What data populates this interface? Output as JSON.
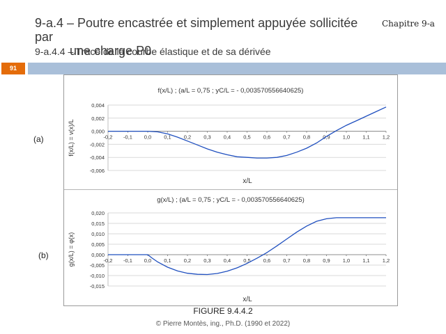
{
  "header": {
    "title_line1": "9-a.4 – Poutre encastrée et simplement appuyée sollicitée par",
    "title_line2": "une charge P0",
    "chapter": "Chapitre 9-a",
    "subtitle": "9-a.4.4 – Tracé de la courbe élastique et de sa dérivée",
    "page_number": "91"
  },
  "figure": {
    "caption": "FIGURE 9.4.4.2",
    "copyright": "© Pierre Montès, ing., Ph.D. (1990 et 2022)"
  },
  "chart_data": [
    {
      "panel_label": "(a)",
      "type": "line",
      "title": "f(x/L)  ;  (a/L = 0,75 ; yC/L = - 0,003570556640625)",
      "xlabel": "x/L",
      "ylabel": "f(x/L) = v(x)/L",
      "xlim": [
        -0.2,
        1.2
      ],
      "ylim": [
        -0.006,
        0.004
      ],
      "x_ticks": [
        "-0,2",
        "-0,1",
        "0,0",
        "0,1",
        "0,2",
        "0,3",
        "0,4",
        "0,5",
        "0,6",
        "0,7",
        "0,8",
        "0,9",
        "1,0",
        "1,1",
        "1,2"
      ],
      "y_ticks": [
        "0,004",
        "0,002",
        "0,000",
        "-0,002",
        "-0,004",
        "-0,006"
      ],
      "grid": true,
      "series": [
        {
          "color": "#1f4fbf",
          "x": [
            -0.2,
            -0.1,
            0.0,
            0.05,
            0.1,
            0.15,
            0.2,
            0.25,
            0.3,
            0.35,
            0.4,
            0.45,
            0.5,
            0.55,
            0.6,
            0.65,
            0.7,
            0.75,
            0.8,
            0.85,
            0.9,
            0.95,
            1.0,
            1.05,
            1.1,
            1.15,
            1.2
          ],
          "y": [
            0.0,
            0.0,
            0.0,
            -0.0001,
            -0.0004,
            -0.0009,
            -0.0015,
            -0.0021,
            -0.0027,
            -0.0032,
            -0.0036,
            -0.0039,
            -0.004,
            -0.0041,
            -0.0041,
            -0.004,
            -0.0037,
            -0.0032,
            -0.0026,
            -0.0018,
            -0.0008,
            0.0001,
            0.0009,
            0.0016,
            0.0023,
            0.003,
            0.0037
          ]
        }
      ]
    },
    {
      "panel_label": "(b)",
      "type": "line",
      "title": "g(x/L)  ;  (a/L = 0,75 ; yC/L = - 0,003570556640625)",
      "xlabel": "x/L",
      "ylabel": "g(x/L) = φ(x)",
      "xlim": [
        -0.2,
        1.2
      ],
      "ylim": [
        -0.015,
        0.02
      ],
      "x_ticks": [
        "-0,2",
        "-0,1",
        "0,0",
        "0,1",
        "0,2",
        "0,3",
        "0,4",
        "0,5",
        "0,6",
        "0,7",
        "0,8",
        "0,9",
        "1,0",
        "1,1",
        "1,2"
      ],
      "y_ticks": [
        "0,020",
        "0,015",
        "0,010",
        "0,005",
        "0,000",
        "-0,005",
        "-0,010",
        "-0,015"
      ],
      "grid": true,
      "series": [
        {
          "color": "#1f4fbf",
          "x": [
            -0.2,
            -0.1,
            0.0,
            0.02,
            0.05,
            0.1,
            0.15,
            0.2,
            0.25,
            0.3,
            0.35,
            0.4,
            0.45,
            0.5,
            0.55,
            0.6,
            0.65,
            0.7,
            0.75,
            0.8,
            0.85,
            0.9,
            0.95,
            1.0,
            1.05,
            1.1,
            1.15,
            1.2
          ],
          "y": [
            0.0,
            0.0,
            0.0,
            -0.0015,
            -0.0035,
            -0.006,
            -0.0078,
            -0.0089,
            -0.0094,
            -0.0095,
            -0.009,
            -0.0079,
            -0.0063,
            -0.0042,
            -0.0017,
            0.001,
            0.0042,
            0.0075,
            0.0108,
            0.0137,
            0.016,
            0.0172,
            0.0177,
            0.0177,
            0.0177,
            0.0177,
            0.0177,
            0.0177
          ]
        }
      ]
    }
  ]
}
